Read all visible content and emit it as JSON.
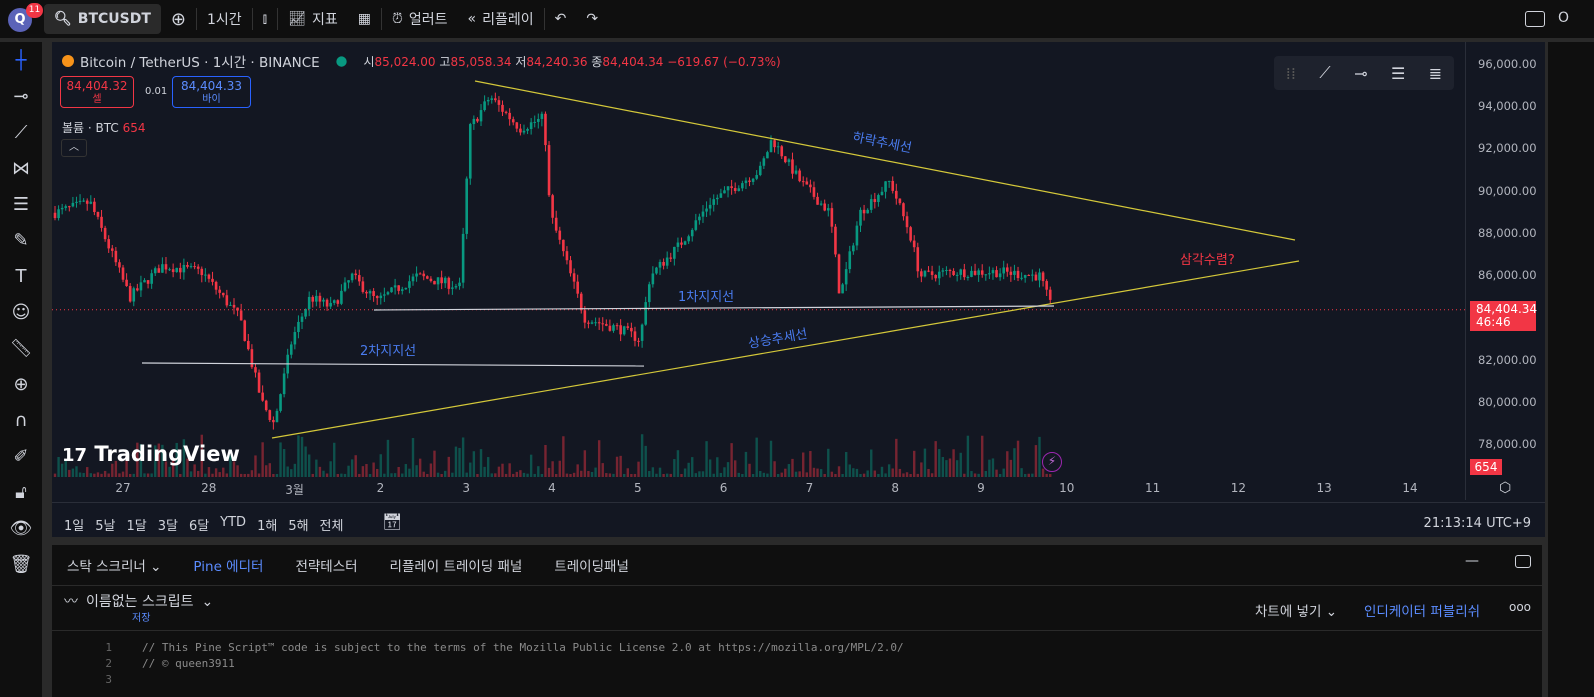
{
  "topbar": {
    "avatar": "Q",
    "notif_count": "11",
    "symbol": "BTCUSDT",
    "interval": "1시간",
    "indicators": "지표",
    "alert": "얼러트",
    "replay": "리플레이",
    "right_text": "O"
  },
  "legend": {
    "title": "Bitcoin / TetherUS · 1시간 · BINANCE",
    "open_label": "시",
    "open": "85,024.00",
    "high_label": "고",
    "high": "85,058.34",
    "low_label": "저",
    "low": "84,240.36",
    "close_label": "종",
    "close": "84,404.34",
    "change": "−619.67 (−0.73%)"
  },
  "trade": {
    "sell_price": "84,404.32",
    "sell_label": "셀",
    "spread": "0.01",
    "buy_price": "84,404.33",
    "buy_label": "바이"
  },
  "volume": {
    "label": "볼륨 · BTC",
    "value": "654"
  },
  "price_axis": {
    "ticks": [
      "96,000.00",
      "94,000.00",
      "92,000.00",
      "90,000.00",
      "88,000.00",
      "86,000.00",
      "82,000.00",
      "80,000.00",
      "78,000.00"
    ],
    "last_price": "84,404.34",
    "countdown": "46:46",
    "volume_badge": "654"
  },
  "time_axis": [
    "27",
    "28",
    "3월",
    "2",
    "3",
    "4",
    "5",
    "6",
    "7",
    "8",
    "9",
    "10",
    "11",
    "12",
    "13",
    "14"
  ],
  "annotations": {
    "downtrend": "하락추세선",
    "uptrend": "상승추세선",
    "support1": "1차지지선",
    "support2": "2차지지선",
    "triangle": "삼각수렴?"
  },
  "watermark": "TradingView",
  "ranges": [
    "1일",
    "5날",
    "1달",
    "3달",
    "6달",
    "YTD",
    "1해",
    "5해",
    "전체"
  ],
  "clock": "21:13:14 UTC+9",
  "bottom": {
    "tabs": [
      "스탁 스크리너",
      "Pine 에디터",
      "전략테스터",
      "리플레이 트레이딩 패널",
      "트레이딩패널"
    ],
    "script_name": "이름없는 스크립트",
    "save": "저장",
    "add_to_chart": "차트에 넣기",
    "publish": "인디케이터 퍼블리쉬",
    "code": [
      "// This Pine Script™ code is subject to the terms of the Mozilla Public License 2.0 at https://mozilla.org/MPL/2.0/",
      "// © queen3911",
      ""
    ]
  },
  "colors": {
    "bg": "#131722",
    "up": "#089981",
    "down": "#f23645",
    "trend": "#d4c83a",
    "accent": "#2962ff"
  }
}
